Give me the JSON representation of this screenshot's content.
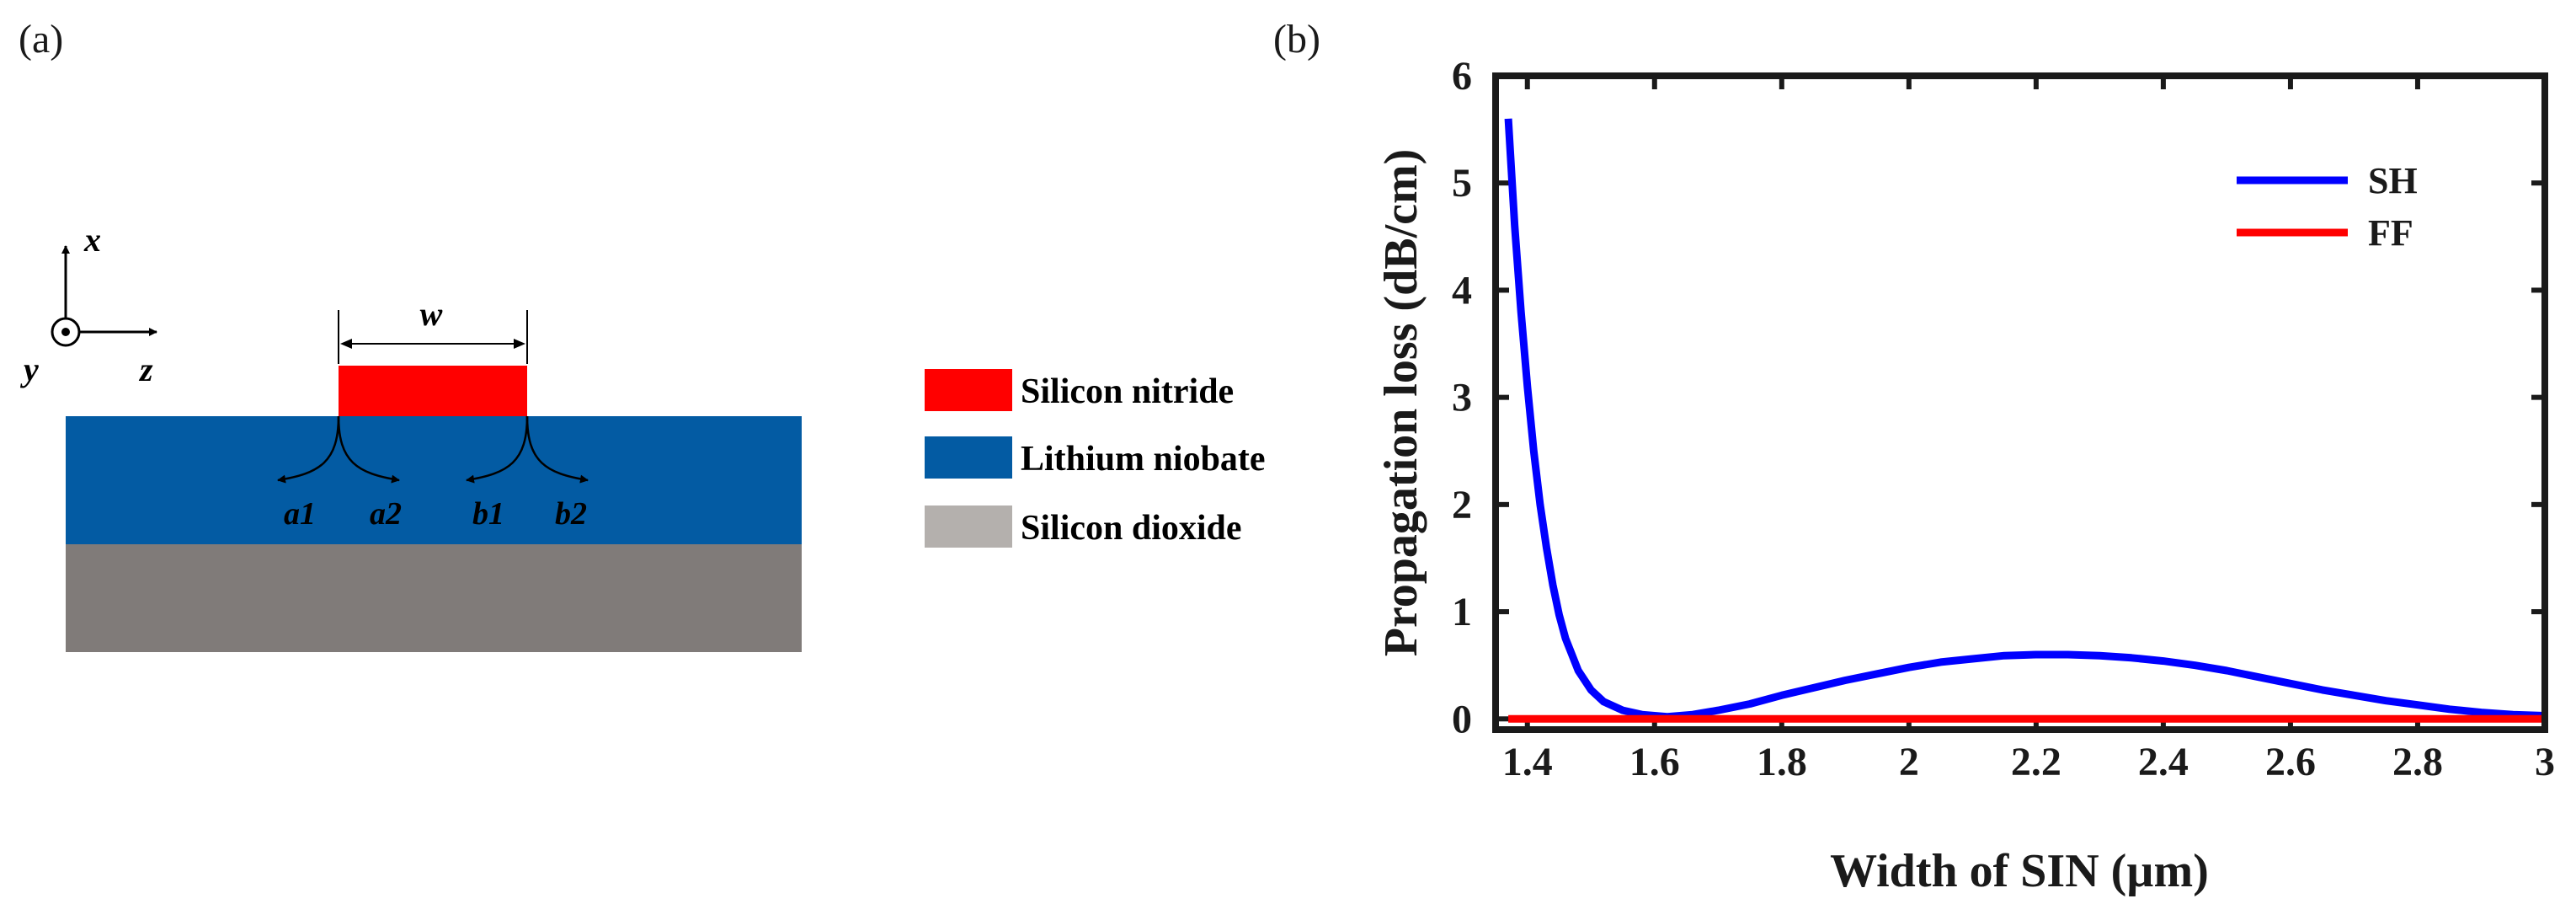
{
  "panel_labels": {
    "a": "(a)",
    "b": "(b)"
  },
  "schematic": {
    "axes": {
      "x": "x",
      "y": "y",
      "z": "z"
    },
    "width_label": "w",
    "corner_labels": [
      "a1",
      "a2",
      "b1",
      "b2"
    ],
    "legend": [
      {
        "label": "Silicon nitride",
        "color": "#ff0000"
      },
      {
        "label": "Lithium niobate",
        "color": "#035ba3"
      },
      {
        "label": "Silicon dioxide",
        "color": "#b4b0ad"
      }
    ],
    "colors": {
      "sin": "#ff0000",
      "ln": "#035ba3",
      "sio2_layer": "#807b79"
    }
  },
  "chart_data": {
    "type": "line",
    "title": "",
    "xlabel": "Width of SIN (µm)",
    "ylabel": "Propagation loss (dB/cm)",
    "xlim": [
      1.35,
      3.0
    ],
    "ylim": [
      -0.1,
      6
    ],
    "xticks": [
      1.4,
      1.6,
      1.8,
      2,
      2.2,
      2.4,
      2.6,
      2.8,
      3
    ],
    "xtick_labels": [
      "1.4",
      "1.6",
      "1.8",
      "2",
      "2.2",
      "2.4",
      "2.6",
      "2.8",
      "3"
    ],
    "yticks": [
      0,
      1,
      2,
      3,
      4,
      5,
      6
    ],
    "ytick_labels": [
      "0",
      "1",
      "2",
      "3",
      "4",
      "5",
      "6"
    ],
    "legend_position": "top-right",
    "series": [
      {
        "name": "SH",
        "color": "#0000ff",
        "x": [
          1.37,
          1.38,
          1.39,
          1.4,
          1.41,
          1.42,
          1.43,
          1.44,
          1.45,
          1.46,
          1.48,
          1.5,
          1.52,
          1.55,
          1.58,
          1.62,
          1.66,
          1.7,
          1.75,
          1.8,
          1.85,
          1.9,
          1.95,
          2.0,
          2.05,
          2.1,
          2.15,
          2.2,
          2.25,
          2.3,
          2.35,
          2.4,
          2.45,
          2.5,
          2.55,
          2.6,
          2.65,
          2.7,
          2.75,
          2.8,
          2.85,
          2.9,
          2.95,
          3.0
        ],
        "y": [
          5.6,
          4.6,
          3.8,
          3.1,
          2.5,
          2.0,
          1.6,
          1.25,
          0.97,
          0.75,
          0.45,
          0.27,
          0.16,
          0.08,
          0.04,
          0.02,
          0.04,
          0.08,
          0.14,
          0.22,
          0.29,
          0.36,
          0.42,
          0.48,
          0.53,
          0.56,
          0.59,
          0.6,
          0.6,
          0.59,
          0.57,
          0.54,
          0.5,
          0.45,
          0.39,
          0.33,
          0.27,
          0.22,
          0.17,
          0.13,
          0.09,
          0.06,
          0.04,
          0.03
        ]
      },
      {
        "name": "FF",
        "color": "#ff0000",
        "x": [
          1.37,
          3.0
        ],
        "y": [
          0.0,
          0.0
        ]
      }
    ]
  }
}
